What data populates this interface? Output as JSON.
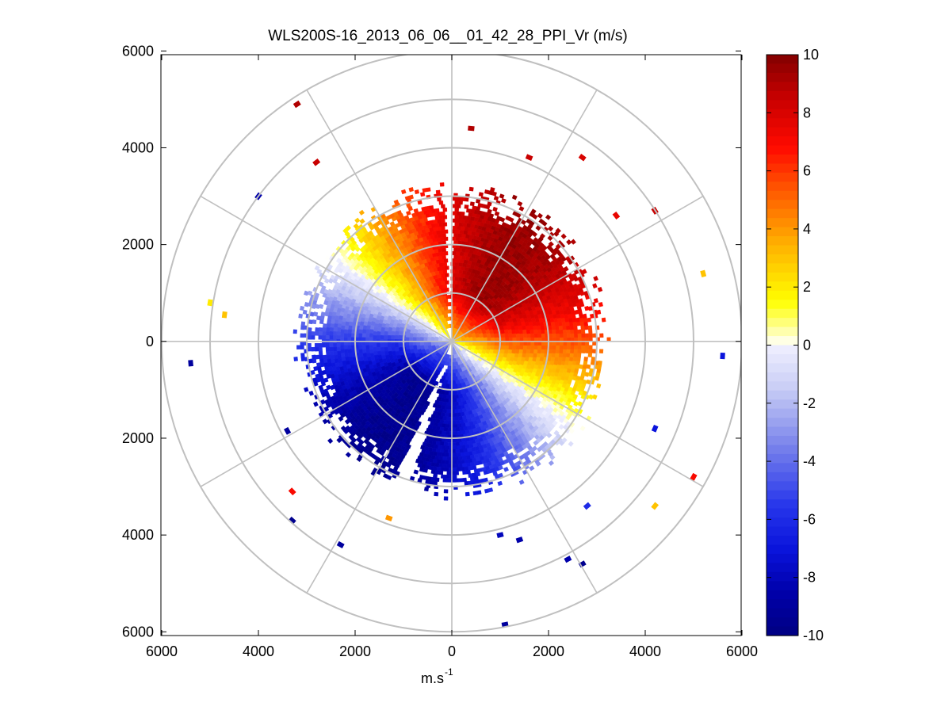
{
  "chart_data": {
    "type": "heatmap",
    "subtype": "polar-ppi",
    "title": "WLS200S-16_2013_06_06__01_42_28_PPI_Vr (m/s)",
    "xlabel": "m.s",
    "xlabel_superscript": "-1",
    "xlim": [
      -6000,
      6000
    ],
    "ylim": [
      -6000,
      6000
    ],
    "x_ticks": [
      -6000,
      -4000,
      -2000,
      0,
      2000,
      4000,
      6000
    ],
    "x_tick_labels": [
      "6000",
      "4000",
      "2000",
      "0",
      "2000",
      "4000",
      "6000"
    ],
    "y_ticks": [
      6000,
      4000,
      2000,
      0,
      -2000,
      -4000,
      -6000
    ],
    "y_tick_labels": [
      "6000",
      "4000",
      "2000",
      "0",
      "2000",
      "4000",
      "6000"
    ],
    "range_rings_m": [
      1000,
      2000,
      3000,
      4000,
      5000,
      6000
    ],
    "spoke_angles_deg": [
      0,
      30,
      60,
      90,
      120,
      150,
      180,
      210,
      240,
      270,
      300,
      330
    ],
    "colorbar": {
      "min": -10,
      "max": 10,
      "ticks": [
        10,
        8,
        6,
        4,
        2,
        0,
        -2,
        -4,
        -6,
        -8,
        -10
      ],
      "tick_labels": [
        "10",
        "8",
        "6",
        "4",
        "2",
        "0",
        "-2",
        "-4",
        "-6",
        "-8",
        "-10"
      ]
    },
    "field": {
      "description_values": "radial velocity (m/s)",
      "dense_range_max_m": 2900,
      "positive_lobe_azimuth_deg": 35,
      "negative_lobe_azimuth_deg": 215,
      "peak_velocity_ms": 9.5,
      "gap_sectors_deg": [
        [
          -1.5,
          1.5
        ],
        [
          197,
          203
        ]
      ],
      "sparse_points": [
        {
          "x": -3200,
          "y": 4900,
          "v": 9.0
        },
        {
          "x": 400,
          "y": 4400,
          "v": 9.0
        },
        {
          "x": -2800,
          "y": 3700,
          "v": 8.5
        },
        {
          "x": 1600,
          "y": 3800,
          "v": 8.5
        },
        {
          "x": 2700,
          "y": 3800,
          "v": 8.0
        },
        {
          "x": -4000,
          "y": 3000,
          "v": -8.5
        },
        {
          "x": 4200,
          "y": 2700,
          "v": 8.5
        },
        {
          "x": 3400,
          "y": 2600,
          "v": 7.5
        },
        {
          "x": 5200,
          "y": 1400,
          "v": 3.0
        },
        {
          "x": -5000,
          "y": 800,
          "v": 2.0
        },
        {
          "x": -4700,
          "y": 550,
          "v": 3.0
        },
        {
          "x": -5400,
          "y": -450,
          "v": -9.0
        },
        {
          "x": 5600,
          "y": -300,
          "v": -7.0
        },
        {
          "x": -3400,
          "y": -1850,
          "v": -9.0
        },
        {
          "x": 4200,
          "y": -1800,
          "v": -7.0
        },
        {
          "x": -3300,
          "y": -3100,
          "v": 7.0
        },
        {
          "x": 5000,
          "y": -2800,
          "v": 7.0
        },
        {
          "x": 4200,
          "y": -3400,
          "v": 3.0
        },
        {
          "x": -3300,
          "y": -3700,
          "v": -9.5
        },
        {
          "x": -2300,
          "y": -4200,
          "v": -9.0
        },
        {
          "x": 1000,
          "y": -4000,
          "v": -8.0
        },
        {
          "x": 1400,
          "y": -4100,
          "v": -8.5
        },
        {
          "x": 2400,
          "y": -4500,
          "v": -8.5
        },
        {
          "x": 2700,
          "y": -4600,
          "v": -9.5
        },
        {
          "x": 1100,
          "y": -5850,
          "v": -9.0
        },
        {
          "x": -1300,
          "y": -3650,
          "v": 4.0
        },
        {
          "x": 2800,
          "y": -3400,
          "v": -6.0
        }
      ]
    }
  }
}
